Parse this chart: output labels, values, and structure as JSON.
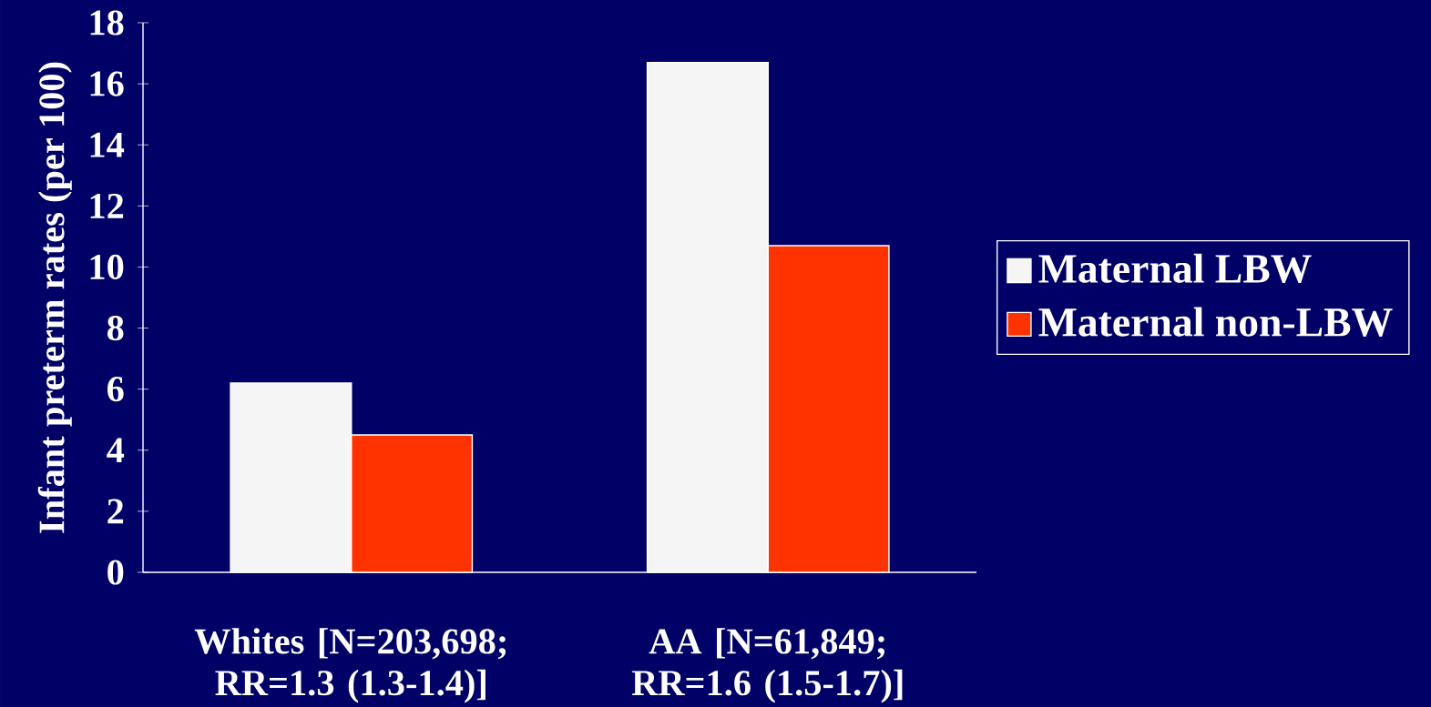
{
  "chart_data": {
    "type": "bar",
    "ylabel": "Infant preterm rates (per 100)",
    "categories": [
      "Whites [N=203,698; RR=1.3 (1.3-1.4)]",
      "AA [N=61,849; RR=1.6 (1.5-1.7)]"
    ],
    "series": [
      {
        "name": "Maternal LBW",
        "color": "#f5f5f5",
        "values": [
          6.2,
          16.7
        ]
      },
      {
        "name": "Maternal non-LBW",
        "color": "#ff3300",
        "values": [
          4.5,
          10.7
        ]
      }
    ],
    "ylim": [
      0,
      18
    ],
    "yticks": [
      0,
      2,
      4,
      6,
      8,
      10,
      12,
      14,
      16,
      18
    ],
    "legend": "right"
  }
}
